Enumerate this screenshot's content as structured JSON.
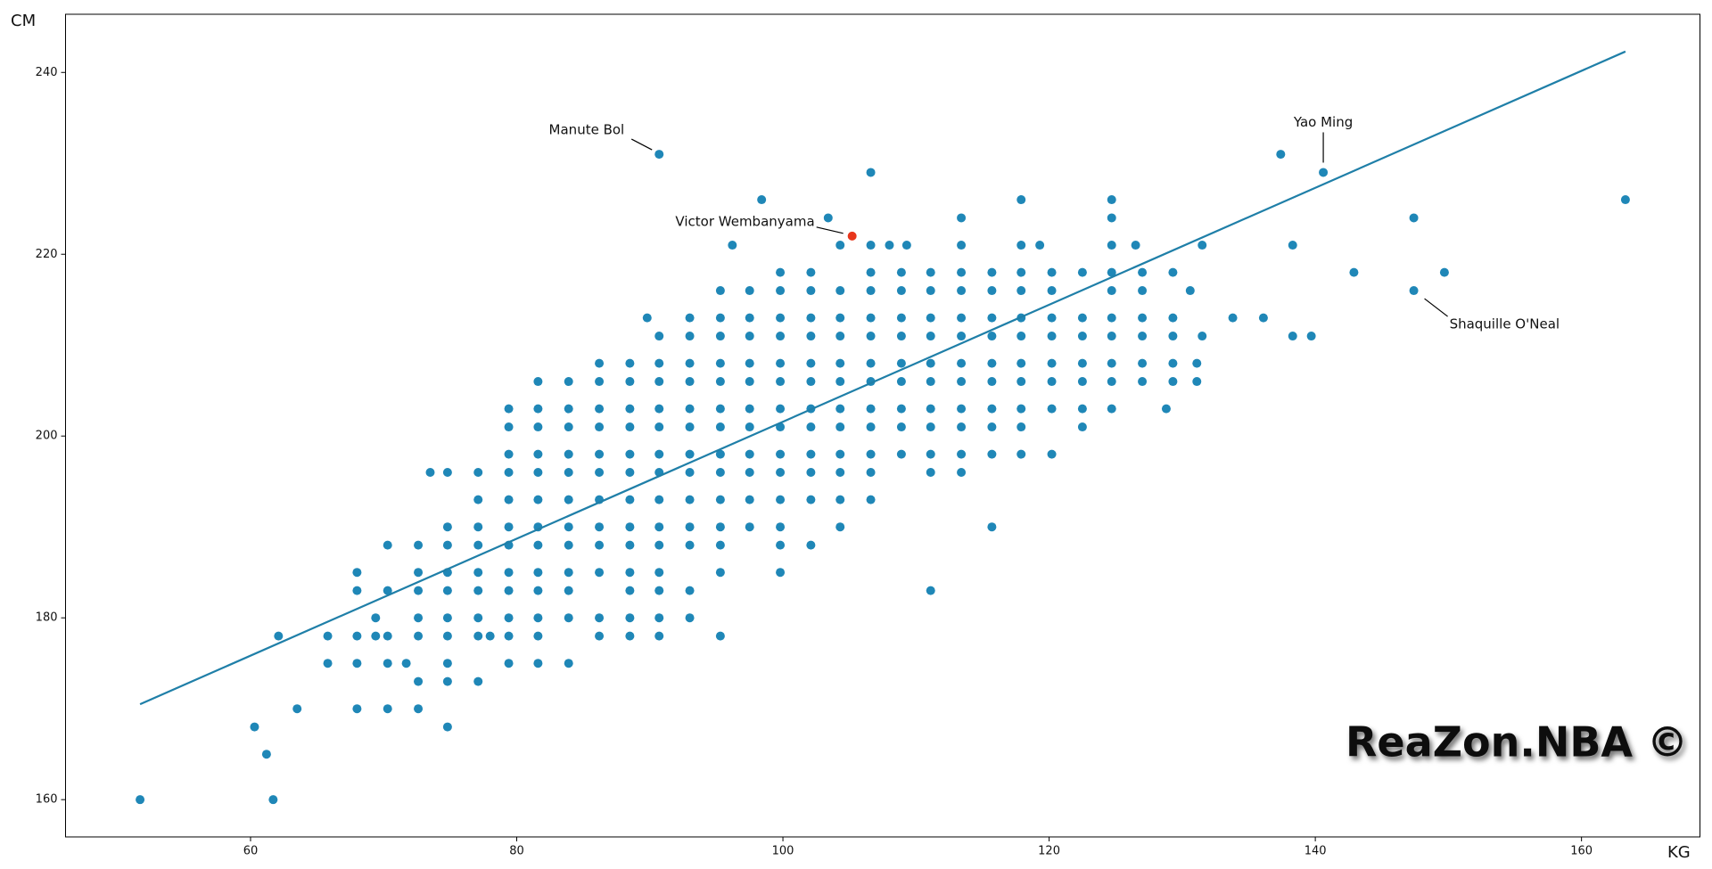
{
  "chart_data": {
    "type": "scatter",
    "y_label": "CM",
    "x_label": "KG",
    "watermark": "ReaZon.NBA ©",
    "color": "#1f87b7",
    "xlim": [
      46.1,
      168.9
    ],
    "ylim": [
      155.9,
      246.4
    ],
    "xticks": [
      60,
      80,
      100,
      120,
      140,
      160
    ],
    "yticks": [
      160,
      180,
      200,
      220,
      240
    ],
    "x": [
      51.7,
      61.7,
      61.2,
      60.3,
      74.8,
      63.5,
      68.0,
      70.3,
      72.6,
      72.6,
      74.8,
      77.1,
      65.8,
      68.0,
      70.3,
      71.7,
      74.8,
      79.4,
      81.6,
      83.9,
      62.1,
      65.8,
      68.0,
      69.4,
      70.3,
      72.6,
      74.8,
      77.1,
      78.0,
      79.4,
      81.6,
      86.2,
      88.5,
      90.7,
      95.3,
      69.4,
      72.6,
      74.8,
      77.1,
      79.4,
      81.6,
      83.9,
      86.2,
      88.5,
      90.7,
      93.0,
      68.0,
      70.3,
      72.6,
      74.8,
      77.1,
      79.4,
      81.6,
      83.9,
      88.5,
      90.7,
      93.0,
      111.1,
      68.0,
      72.6,
      74.8,
      77.1,
      79.4,
      81.6,
      83.9,
      86.2,
      88.5,
      90.7,
      95.3,
      99.8,
      70.3,
      72.6,
      74.8,
      77.1,
      79.4,
      81.6,
      83.9,
      86.2,
      88.5,
      90.7,
      93.0,
      95.3,
      99.8,
      102.1,
      74.8,
      77.1,
      79.4,
      81.6,
      83.9,
      86.2,
      88.5,
      90.7,
      93.0,
      95.3,
      97.5,
      99.8,
      104.3,
      115.7,
      77.1,
      79.4,
      81.6,
      83.9,
      86.2,
      88.5,
      90.7,
      93.0,
      95.3,
      97.5,
      99.8,
      102.1,
      104.3,
      106.6,
      73.5,
      74.8,
      77.1,
      79.4,
      81.6,
      83.9,
      86.2,
      88.5,
      90.7,
      93.0,
      95.3,
      97.5,
      99.8,
      102.1,
      104.3,
      106.6,
      111.1,
      113.4,
      79.4,
      81.6,
      83.9,
      86.2,
      88.5,
      90.7,
      93.0,
      95.3,
      97.5,
      99.8,
      102.1,
      104.3,
      106.6,
      108.9,
      111.1,
      113.4,
      115.7,
      117.9,
      120.2,
      79.4,
      81.6,
      83.9,
      86.2,
      88.5,
      90.7,
      93.0,
      95.3,
      97.5,
      99.8,
      102.1,
      104.3,
      106.6,
      108.9,
      111.1,
      113.4,
      115.7,
      117.9,
      122.5,
      79.4,
      81.6,
      83.9,
      86.2,
      88.5,
      90.7,
      93.0,
      95.3,
      97.5,
      99.8,
      102.1,
      104.3,
      106.6,
      108.9,
      111.1,
      113.4,
      115.7,
      117.9,
      120.2,
      122.5,
      124.7,
      128.8,
      81.6,
      83.9,
      86.2,
      88.5,
      90.7,
      93.0,
      95.3,
      97.5,
      99.8,
      102.1,
      104.3,
      106.6,
      108.9,
      111.1,
      113.4,
      115.7,
      117.9,
      120.2,
      122.5,
      124.7,
      127.0,
      129.3,
      131.1,
      86.2,
      88.5,
      90.7,
      93.0,
      95.3,
      97.5,
      99.8,
      102.1,
      104.3,
      106.6,
      108.9,
      111.1,
      113.4,
      115.7,
      117.9,
      120.2,
      122.5,
      124.7,
      127.0,
      129.3,
      131.1,
      90.7,
      93.0,
      95.3,
      97.5,
      99.8,
      102.1,
      104.3,
      106.6,
      108.9,
      111.1,
      113.4,
      115.7,
      117.9,
      120.2,
      122.5,
      124.7,
      127.0,
      129.3,
      131.5,
      138.3,
      139.7,
      89.8,
      93.0,
      95.3,
      97.5,
      99.8,
      102.1,
      104.3,
      106.6,
      108.9,
      111.1,
      113.4,
      115.7,
      117.9,
      120.2,
      122.5,
      124.7,
      127.0,
      129.3,
      133.8,
      136.1,
      95.3,
      97.5,
      99.8,
      102.1,
      104.3,
      106.6,
      108.9,
      111.1,
      113.4,
      115.7,
      117.9,
      120.2,
      124.7,
      127.0,
      130.6,
      147.4,
      99.8,
      102.1,
      106.6,
      108.9,
      111.1,
      113.4,
      115.7,
      117.9,
      120.2,
      122.5,
      124.7,
      127.0,
      129.3,
      142.9,
      149.7,
      96.2,
      104.3,
      106.6,
      108.0,
      109.3,
      113.4,
      117.9,
      119.3,
      124.7,
      126.5,
      131.5,
      138.3,
      103.4,
      113.4,
      124.7,
      147.4,
      98.4,
      117.9,
      124.7,
      163.3,
      106.6,
      140.6,
      90.7,
      137.4
    ],
    "values": [
      160,
      160,
      165,
      168,
      168,
      170,
      170,
      170,
      170,
      173,
      173,
      173,
      175,
      175,
      175,
      175,
      175,
      175,
      175,
      175,
      178,
      178,
      178,
      178,
      178,
      178,
      178,
      178,
      178,
      178,
      178,
      178,
      178,
      178,
      178,
      180,
      180,
      180,
      180,
      180,
      180,
      180,
      180,
      180,
      180,
      180,
      183,
      183,
      183,
      183,
      183,
      183,
      183,
      183,
      183,
      183,
      183,
      183,
      185,
      185,
      185,
      185,
      185,
      185,
      185,
      185,
      185,
      185,
      185,
      185,
      188,
      188,
      188,
      188,
      188,
      188,
      188,
      188,
      188,
      188,
      188,
      188,
      188,
      188,
      190,
      190,
      190,
      190,
      190,
      190,
      190,
      190,
      190,
      190,
      190,
      190,
      190,
      190,
      193,
      193,
      193,
      193,
      193,
      193,
      193,
      193,
      193,
      193,
      193,
      193,
      193,
      193,
      196,
      196,
      196,
      196,
      196,
      196,
      196,
      196,
      196,
      196,
      196,
      196,
      196,
      196,
      196,
      196,
      196,
      196,
      198,
      198,
      198,
      198,
      198,
      198,
      198,
      198,
      198,
      198,
      198,
      198,
      198,
      198,
      198,
      198,
      198,
      198,
      198,
      201,
      201,
      201,
      201,
      201,
      201,
      201,
      201,
      201,
      201,
      201,
      201,
      201,
      201,
      201,
      201,
      201,
      201,
      201,
      203,
      203,
      203,
      203,
      203,
      203,
      203,
      203,
      203,
      203,
      203,
      203,
      203,
      203,
      203,
      203,
      203,
      203,
      203,
      203,
      203,
      203,
      206,
      206,
      206,
      206,
      206,
      206,
      206,
      206,
      206,
      206,
      206,
      206,
      206,
      206,
      206,
      206,
      206,
      206,
      206,
      206,
      206,
      206,
      206,
      208,
      208,
      208,
      208,
      208,
      208,
      208,
      208,
      208,
      208,
      208,
      208,
      208,
      208,
      208,
      208,
      208,
      208,
      208,
      208,
      208,
      211,
      211,
      211,
      211,
      211,
      211,
      211,
      211,
      211,
      211,
      211,
      211,
      211,
      211,
      211,
      211,
      211,
      211,
      211,
      211,
      211,
      213,
      213,
      213,
      213,
      213,
      213,
      213,
      213,
      213,
      213,
      213,
      213,
      213,
      213,
      213,
      213,
      213,
      213,
      213,
      213,
      216,
      216,
      216,
      216,
      216,
      216,
      216,
      216,
      216,
      216,
      216,
      216,
      216,
      216,
      216,
      216,
      218,
      218,
      218,
      218,
      218,
      218,
      218,
      218,
      218,
      218,
      218,
      218,
      218,
      218,
      218,
      221,
      221,
      221,
      221,
      221,
      221,
      221,
      221,
      221,
      221,
      221,
      221,
      224,
      224,
      224,
      224,
      226,
      226,
      226,
      226,
      229,
      229,
      231,
      231
    ],
    "highlight": {
      "color": "#e8361c",
      "x": [
        105.2
      ],
      "values": [
        222
      ]
    },
    "trend_line": {
      "color": "#1f7fa8",
      "x": [
        51.7,
        163.3
      ],
      "values": [
        170.5,
        242.3
      ]
    },
    "annotations": [
      {
        "text": "Manute Bol",
        "x": 90.7,
        "y": 231
      },
      {
        "text": "Victor Wembanyama",
        "x": 105.2,
        "y": 222
      },
      {
        "text": "Yao Ming",
        "x": 140.6,
        "y": 229
      },
      {
        "text": "Shaquille O'Neal",
        "x": 147.4,
        "y": 216
      }
    ]
  }
}
